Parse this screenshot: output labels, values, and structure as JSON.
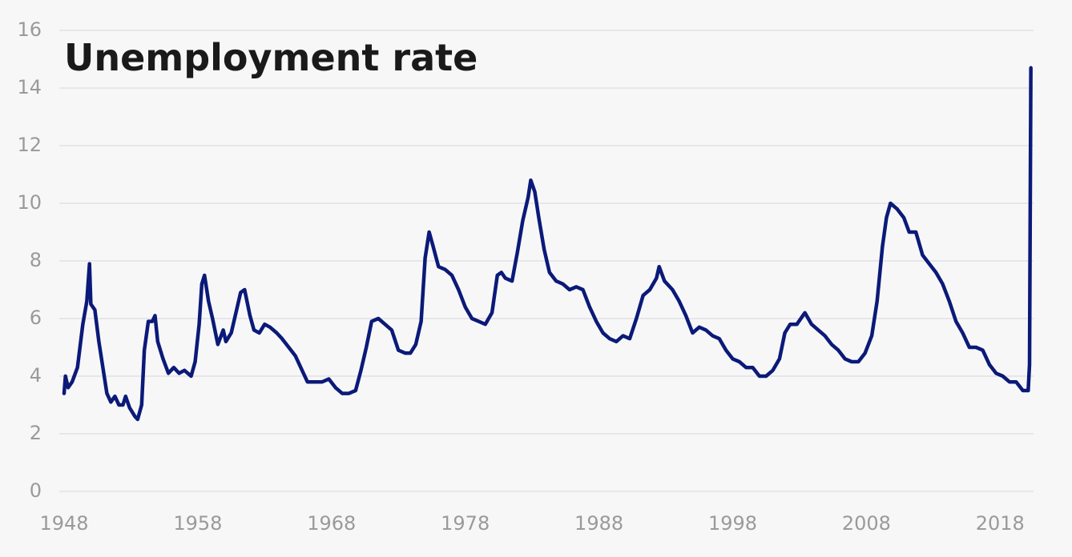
{
  "chart_data": {
    "type": "line",
    "title": "Unemployment rate",
    "color": "#0b1a78",
    "xlim": [
      1948,
      2020.5
    ],
    "xticks": [
      1948,
      1958,
      1968,
      1978,
      1988,
      1998,
      2008,
      2018
    ],
    "ylim": [
      0,
      16
    ],
    "yticks": [
      0,
      2,
      4,
      6,
      8,
      10,
      12,
      14,
      16
    ],
    "grid": true,
    "x": [
      1948.0,
      1948.1,
      1948.3,
      1948.6,
      1949.0,
      1949.4,
      1949.7,
      1949.9,
      1950.0,
      1950.3,
      1950.6,
      1950.9,
      1951.2,
      1951.5,
      1951.8,
      1952.1,
      1952.4,
      1952.6,
      1952.9,
      1953.3,
      1953.5,
      1953.8,
      1954.0,
      1954.3,
      1954.6,
      1954.8,
      1955.0,
      1955.4,
      1955.8,
      1956.2,
      1956.6,
      1957.0,
      1957.5,
      1957.8,
      1958.1,
      1958.3,
      1958.5,
      1958.8,
      1959.1,
      1959.5,
      1959.9,
      1960.1,
      1960.5,
      1960.9,
      1961.2,
      1961.5,
      1961.9,
      1962.2,
      1962.6,
      1963.0,
      1963.4,
      1963.9,
      1964.3,
      1964.8,
      1965.3,
      1965.8,
      1966.2,
      1966.8,
      1967.3,
      1967.8,
      1968.3,
      1968.8,
      1969.3,
      1969.8,
      1970.2,
      1970.6,
      1971.0,
      1971.5,
      1972.0,
      1972.5,
      1973.0,
      1973.5,
      1973.9,
      1974.3,
      1974.7,
      1975.0,
      1975.3,
      1975.6,
      1976.0,
      1976.5,
      1977.0,
      1977.5,
      1978.0,
      1978.5,
      1979.0,
      1979.5,
      1980.0,
      1980.4,
      1980.7,
      1981.0,
      1981.5,
      1981.9,
      1982.3,
      1982.7,
      1982.9,
      1983.2,
      1983.5,
      1983.9,
      1984.3,
      1984.8,
      1985.3,
      1985.8,
      1986.3,
      1986.8,
      1987.3,
      1987.8,
      1988.3,
      1988.8,
      1989.3,
      1989.8,
      1990.3,
      1990.8,
      1991.3,
      1991.8,
      1992.3,
      1992.5,
      1992.9,
      1993.5,
      1994.0,
      1994.5,
      1995.0,
      1995.5,
      1996.0,
      1996.5,
      1997.0,
      1997.5,
      1998.0,
      1998.5,
      1999.0,
      1999.5,
      2000.0,
      2000.5,
      2001.0,
      2001.5,
      2001.9,
      2002.3,
      2002.8,
      2003.4,
      2003.9,
      2004.4,
      2004.9,
      2005.4,
      2005.9,
      2006.4,
      2006.9,
      2007.4,
      2007.9,
      2008.4,
      2008.8,
      2009.2,
      2009.5,
      2009.8,
      2010.3,
      2010.8,
      2011.2,
      2011.7,
      2012.2,
      2012.7,
      2013.2,
      2013.7,
      2014.2,
      2014.7,
      2015.2,
      2015.7,
      2016.2,
      2016.7,
      2017.2,
      2017.7,
      2018.2,
      2018.7,
      2019.2,
      2019.7,
      2020.1,
      2020.2,
      2020.3
    ],
    "values": [
      3.4,
      4.0,
      3.6,
      3.8,
      4.3,
      5.8,
      6.6,
      7.9,
      6.5,
      6.3,
      5.2,
      4.3,
      3.4,
      3.1,
      3.3,
      3.0,
      3.0,
      3.3,
      2.9,
      2.6,
      2.5,
      3.0,
      4.9,
      5.9,
      5.9,
      6.1,
      5.2,
      4.6,
      4.1,
      4.3,
      4.1,
      4.2,
      4.0,
      4.5,
      5.8,
      7.2,
      7.5,
      6.6,
      6.0,
      5.1,
      5.6,
      5.2,
      5.5,
      6.3,
      6.9,
      7.0,
      6.1,
      5.6,
      5.5,
      5.8,
      5.7,
      5.5,
      5.3,
      5.0,
      4.7,
      4.2,
      3.8,
      3.8,
      3.8,
      3.9,
      3.6,
      3.4,
      3.4,
      3.5,
      4.2,
      5.0,
      5.9,
      6.0,
      5.8,
      5.6,
      4.9,
      4.8,
      4.8,
      5.1,
      5.9,
      8.1,
      9.0,
      8.5,
      7.8,
      7.7,
      7.5,
      7.0,
      6.4,
      6.0,
      5.9,
      5.8,
      6.2,
      7.5,
      7.6,
      7.4,
      7.3,
      8.3,
      9.4,
      10.2,
      10.8,
      10.4,
      9.5,
      8.4,
      7.6,
      7.3,
      7.2,
      7.0,
      7.1,
      7.0,
      6.4,
      5.9,
      5.5,
      5.3,
      5.2,
      5.4,
      5.3,
      6.0,
      6.8,
      7.0,
      7.4,
      7.8,
      7.3,
      7.0,
      6.6,
      6.1,
      5.5,
      5.7,
      5.6,
      5.4,
      5.3,
      4.9,
      4.6,
      4.5,
      4.3,
      4.3,
      4.0,
      4.0,
      4.2,
      4.6,
      5.5,
      5.8,
      5.8,
      6.2,
      5.8,
      5.6,
      5.4,
      5.1,
      4.9,
      4.6,
      4.5,
      4.5,
      4.8,
      5.4,
      6.6,
      8.5,
      9.5,
      10.0,
      9.8,
      9.5,
      9.0,
      9.0,
      8.2,
      7.9,
      7.6,
      7.2,
      6.6,
      5.9,
      5.5,
      5.0,
      5.0,
      4.9,
      4.4,
      4.1,
      4.0,
      3.8,
      3.8,
      3.5,
      3.5,
      4.4,
      14.7
    ]
  }
}
